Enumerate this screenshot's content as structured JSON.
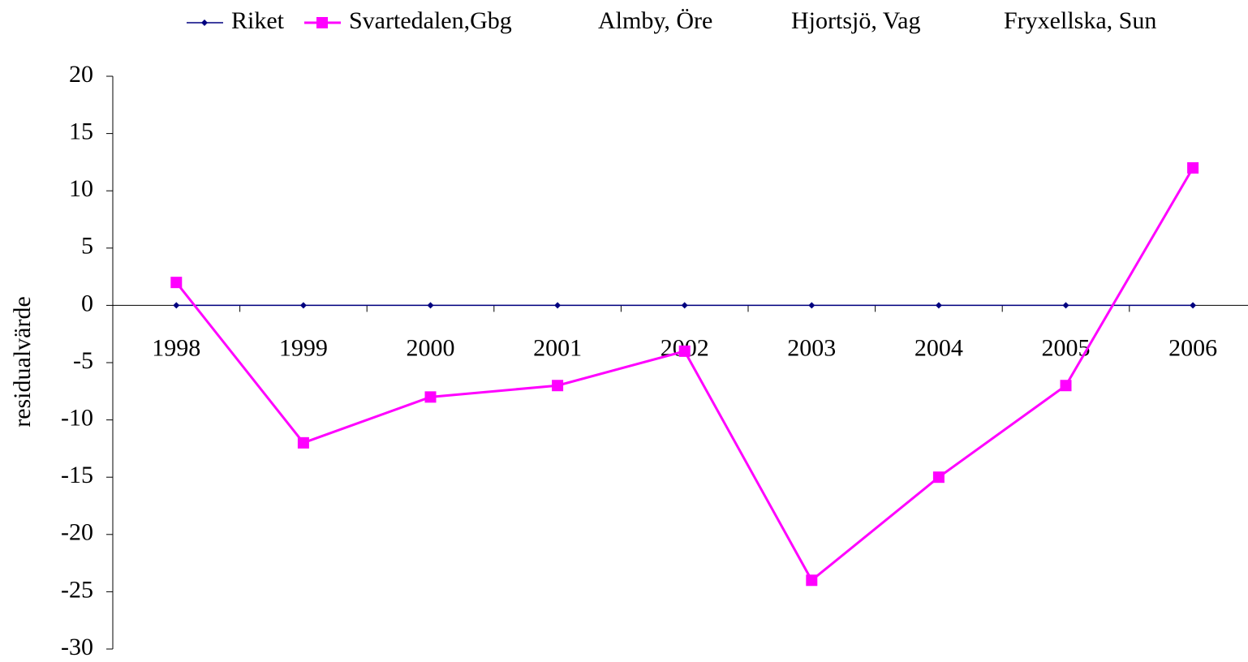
{
  "chart_data": {
    "type": "line",
    "y_label": "residualvärde",
    "categories": [
      "1998",
      "1999",
      "2000",
      "2001",
      "2002",
      "2003",
      "2004",
      "2005",
      "2006"
    ],
    "series": [
      {
        "name": "Riket",
        "color": "#000080",
        "marker": "diamond",
        "values": [
          0,
          0,
          0,
          0,
          0,
          0,
          0,
          0,
          0
        ]
      },
      {
        "name": "Svartedalen,Gbg",
        "color": "#ff00ff",
        "marker": "square",
        "values": [
          2,
          -12,
          -8,
          -7,
          -4,
          -24,
          -15,
          -7,
          12
        ]
      },
      {
        "name": "Almby, Öre",
        "values": [
          null,
          null,
          null,
          null,
          null,
          null,
          null,
          null,
          null
        ]
      },
      {
        "name": "Hjortsjö, Vag",
        "values": [
          null,
          null,
          null,
          null,
          null,
          null,
          null,
          null,
          null
        ]
      },
      {
        "name": "Fryxellska, Sun",
        "values": [
          null,
          null,
          null,
          null,
          null,
          null,
          null,
          null,
          null
        ]
      }
    ],
    "ylim": [
      -30,
      20
    ],
    "yticks": [
      -30,
      -25,
      -20,
      -15,
      -10,
      -5,
      0,
      5,
      10,
      15,
      20
    ],
    "legend": "top"
  }
}
